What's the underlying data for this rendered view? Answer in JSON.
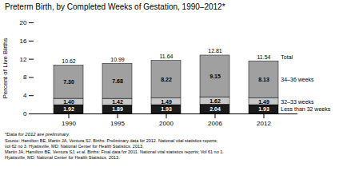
{
  "chart_data": {
    "type": "bar",
    "stacked": true,
    "data_labels": true,
    "grid": false,
    "title": "Preterm Birth, by Completed Weeks of Gestation, 1990–2012*",
    "ylabel": "Percent of Live Births",
    "categories": [
      "1990",
      "1995",
      "2000",
      "2006",
      "2012"
    ],
    "series": [
      {
        "name": "Less than 32 weeks",
        "color": "#1a1a1a",
        "values": [
          1.92,
          1.89,
          1.93,
          2.04,
          1.93
        ],
        "value_labels": [
          "1.92",
          "1.89",
          "1.93",
          "2.04",
          "1.93"
        ]
      },
      {
        "name": "32–33 weeks",
        "color": "#c8c8c8",
        "values": [
          1.4,
          1.42,
          1.49,
          1.62,
          1.49
        ],
        "value_labels": [
          "1.40",
          "1.42",
          "1.49",
          "1.62",
          "1.49"
        ]
      },
      {
        "name": "34–36 weeks",
        "color": "#a0a0a0",
        "values": [
          7.3,
          7.68,
          8.22,
          9.15,
          8.13
        ],
        "value_labels": [
          "7.30",
          "7.68",
          "8.22",
          "9.15",
          "8.13"
        ]
      }
    ],
    "totals": {
      "label": "Total",
      "values": [
        10.62,
        10.99,
        11.64,
        12.81,
        11.54
      ]
    },
    "ylim": [
      0,
      20
    ],
    "yticks": [
      0,
      4,
      8,
      12,
      16,
      20
    ],
    "footnote": "*Data for 2012 are preliminary.",
    "source": [
      "Source: Hamilton BE, Martin JA, Ventura SJ. Births: Preliminary data for 2012. National vital statistics reports;",
      "vol 62 no 3. Hyattsville, MD: National Center for Health Statistics. 2013.",
      "Martin JA, Hamilton BE, Ventura SJ, et al. Births: Final data for 2011. National vital statistics reports; Vol 61 no 1.",
      "Hyattsville, MD: National Center for Health Statistics. 2013."
    ]
  }
}
